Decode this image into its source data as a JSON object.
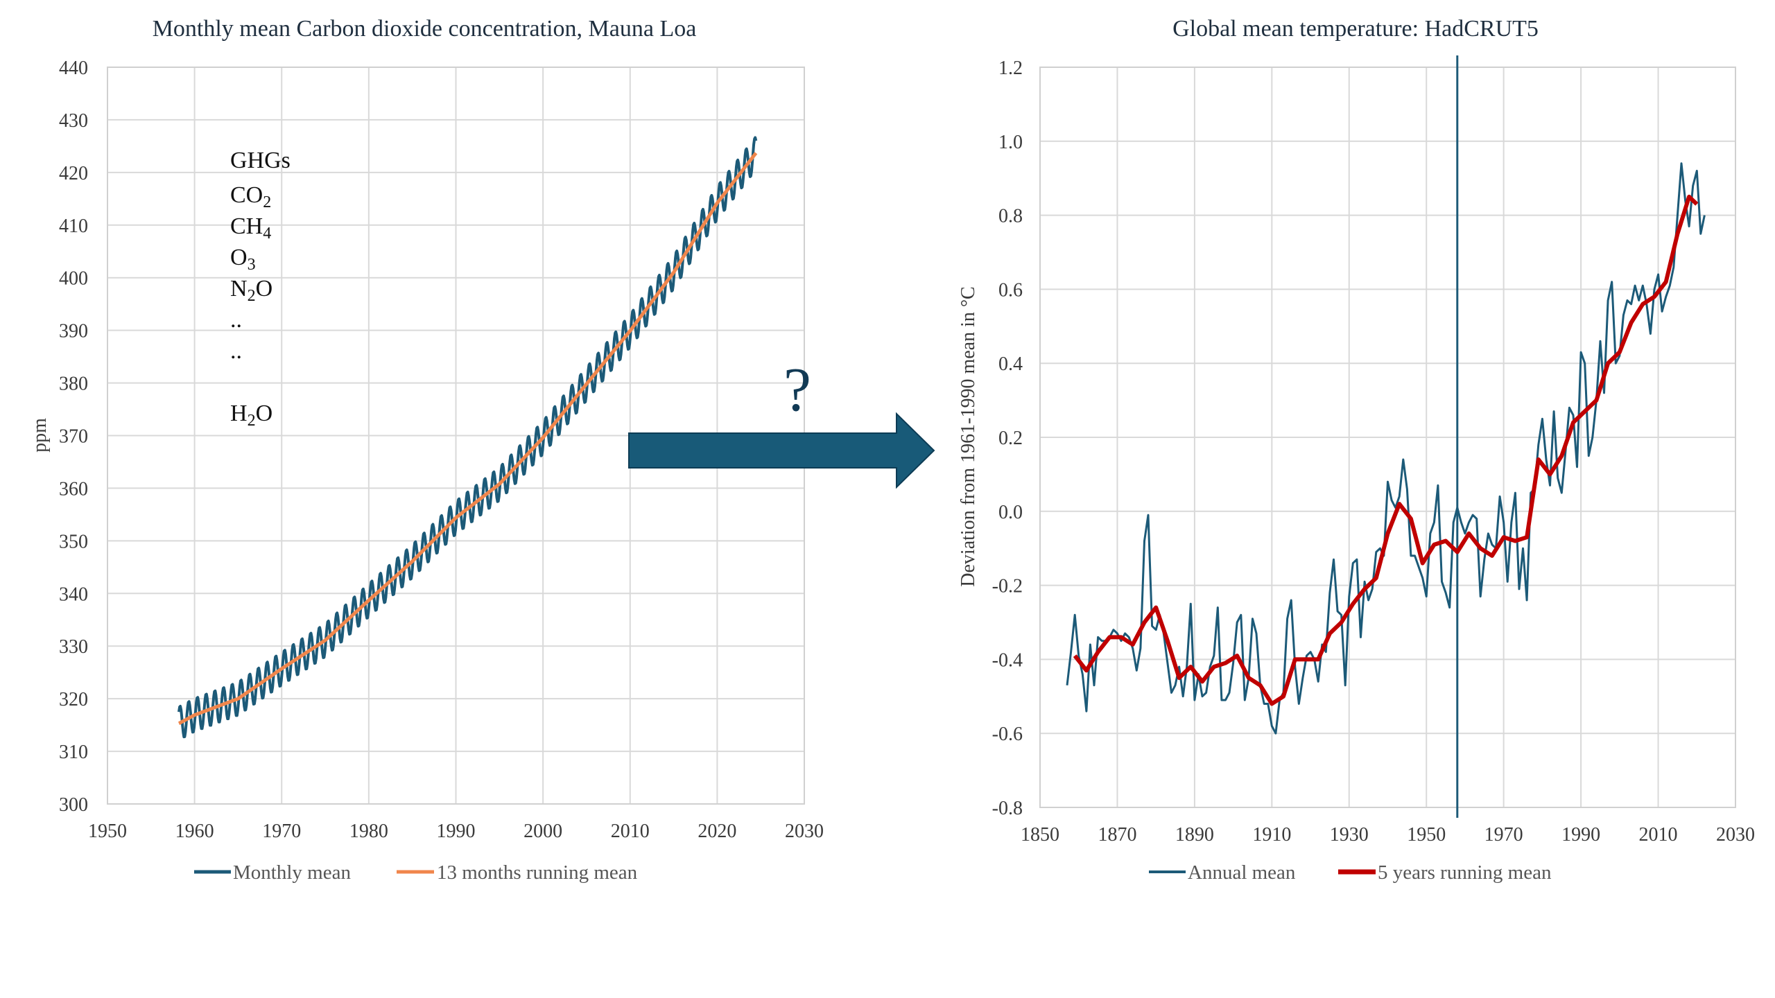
{
  "chart_data": [
    {
      "type": "line",
      "title": "Monthly mean Carbon dioxide concentration, Mauna Loa",
      "ylabel": "ppm",
      "xlim": [
        1950,
        2030
      ],
      "ylim": [
        300,
        440
      ],
      "xticks": [
        1950,
        1960,
        1970,
        1980,
        1990,
        2000,
        2010,
        2020,
        2030
      ],
      "yticks": [
        300,
        310,
        320,
        330,
        340,
        350,
        360,
        370,
        380,
        390,
        400,
        410,
        420,
        430,
        440
      ],
      "grid": true,
      "legend_position": "bottom",
      "colors": {
        "monthly": "#1c5a78",
        "running": "#f0864c"
      },
      "annotation": {
        "heading": "GHGs",
        "items": [
          {
            "base": "CO",
            "sub": "2",
            "tail": ""
          },
          {
            "base": "CH",
            "sub": "4",
            "tail": ""
          },
          {
            "base": "O",
            "sub": "3",
            "tail": ""
          },
          {
            "base": "N",
            "sub": "2",
            "tail": "O"
          },
          {
            "base": "..",
            "sub": "",
            "tail": ""
          },
          {
            "base": "..",
            "sub": "",
            "tail": ""
          },
          {
            "base": "",
            "sub": "",
            "tail": ""
          },
          {
            "base": "H",
            "sub": "2",
            "tail": "O"
          }
        ]
      },
      "running_mean_anchors": {
        "x": [
          1958.2,
          1960,
          1965,
          1970,
          1975,
          1980,
          1985,
          1990,
          1995,
          2000,
          2005,
          2010,
          2015,
          2020,
          2024.5
        ],
        "y": [
          315.3,
          316.9,
          320.0,
          325.7,
          331.1,
          338.7,
          346.1,
          354.4,
          360.8,
          369.6,
          379.8,
          389.9,
          401.0,
          414.2,
          423.8
        ]
      },
      "seasonal_amplitude_ppm": 3.2,
      "series": [
        {
          "name": "Monthly mean"
        },
        {
          "name": "13 months running mean"
        }
      ]
    },
    {
      "type": "line",
      "title": "Global mean temperature: HadCRUT5",
      "ylabel": "Deviation from 1961-1990 mean in °C",
      "xlim": [
        1850,
        2030
      ],
      "ylim": [
        -0.8,
        1.2
      ],
      "xticks": [
        1850,
        1870,
        1890,
        1910,
        1930,
        1950,
        1970,
        1990,
        2010,
        2030
      ],
      "yticks": [
        "-0.8",
        "-0.6",
        "-0.4",
        "-0.2",
        "0.0",
        "0.2",
        "0.4",
        "0.6",
        "0.8",
        "1.0",
        "1.2"
      ],
      "grid": true,
      "legend_position": "bottom",
      "vertical_marker_year": 1958,
      "colors": {
        "annual": "#1c5a78",
        "running": "#c00000",
        "marker": "#1c5a78"
      },
      "series": [
        {
          "name": "Annual mean",
          "x": [
            1857,
            1858,
            1859,
            1860,
            1861,
            1862,
            1863,
            1864,
            1865,
            1866,
            1867,
            1868,
            1869,
            1870,
            1871,
            1872,
            1873,
            1874,
            1875,
            1876,
            1877,
            1878,
            1879,
            1880,
            1881,
            1882,
            1883,
            1884,
            1885,
            1886,
            1887,
            1888,
            1889,
            1890,
            1891,
            1892,
            1893,
            1894,
            1895,
            1896,
            1897,
            1898,
            1899,
            1900,
            1901,
            1902,
            1903,
            1904,
            1905,
            1906,
            1907,
            1908,
            1909,
            1910,
            1911,
            1912,
            1913,
            1914,
            1915,
            1916,
            1917,
            1918,
            1919,
            1920,
            1921,
            1922,
            1923,
            1924,
            1925,
            1926,
            1927,
            1928,
            1929,
            1930,
            1931,
            1932,
            1933,
            1934,
            1935,
            1936,
            1937,
            1938,
            1939,
            1940,
            1941,
            1942,
            1943,
            1944,
            1945,
            1946,
            1947,
            1948,
            1949,
            1950,
            1951,
            1952,
            1953,
            1954,
            1955,
            1956,
            1957,
            1958,
            1959,
            1960,
            1961,
            1962,
            1963,
            1964,
            1965,
            1966,
            1967,
            1968,
            1969,
            1970,
            1971,
            1972,
            1973,
            1974,
            1975,
            1976,
            1977,
            1978,
            1979,
            1980,
            1981,
            1982,
            1983,
            1984,
            1985,
            1986,
            1987,
            1988,
            1989,
            1990,
            1991,
            1992,
            1993,
            1994,
            1995,
            1996,
            1997,
            1998,
            1999,
            2000,
            2001,
            2002,
            2003,
            2004,
            2005,
            2006,
            2007,
            2008,
            2009,
            2010,
            2011,
            2012,
            2013,
            2014,
            2015,
            2016,
            2017,
            2018,
            2019,
            2020,
            2021,
            2022
          ],
          "y": [
            -0.47,
            -0.38,
            -0.28,
            -0.39,
            -0.44,
            -0.54,
            -0.36,
            -0.47,
            -0.34,
            -0.35,
            -0.35,
            -0.34,
            -0.32,
            -0.33,
            -0.35,
            -0.33,
            -0.34,
            -0.37,
            -0.43,
            -0.37,
            -0.08,
            -0.01,
            -0.31,
            -0.32,
            -0.28,
            -0.33,
            -0.41,
            -0.49,
            -0.47,
            -0.42,
            -0.5,
            -0.42,
            -0.25,
            -0.51,
            -0.44,
            -0.5,
            -0.49,
            -0.42,
            -0.39,
            -0.26,
            -0.51,
            -0.51,
            -0.49,
            -0.41,
            -0.3,
            -0.28,
            -0.51,
            -0.45,
            -0.29,
            -0.33,
            -0.47,
            -0.52,
            -0.52,
            -0.58,
            -0.6,
            -0.51,
            -0.49,
            -0.29,
            -0.24,
            -0.42,
            -0.52,
            -0.45,
            -0.39,
            -0.38,
            -0.4,
            -0.46,
            -0.36,
            -0.38,
            -0.22,
            -0.13,
            -0.27,
            -0.28,
            -0.47,
            -0.23,
            -0.14,
            -0.13,
            -0.34,
            -0.19,
            -0.24,
            -0.21,
            -0.11,
            -0.1,
            -0.12,
            0.08,
            0.03,
            0.01,
            0.04,
            0.14,
            0.06,
            -0.12,
            -0.12,
            -0.15,
            -0.18,
            -0.23,
            -0.06,
            -0.03,
            0.07,
            -0.19,
            -0.22,
            -0.26,
            -0.03,
            0.01,
            -0.03,
            -0.06,
            -0.03,
            -0.01,
            -0.02,
            -0.23,
            -0.13,
            -0.06,
            -0.09,
            -0.1,
            0.04,
            -0.03,
            -0.19,
            -0.03,
            0.05,
            -0.21,
            -0.1,
            -0.24,
            0.05,
            0.06,
            0.18,
            0.25,
            0.14,
            0.07,
            0.27,
            0.09,
            0.05,
            0.16,
            0.28,
            0.26,
            0.12,
            0.43,
            0.4,
            0.15,
            0.2,
            0.3,
            0.46,
            0.32,
            0.57,
            0.62,
            0.4,
            0.42,
            0.53,
            0.57,
            0.56,
            0.61,
            0.57,
            0.61,
            0.56,
            0.48,
            0.6,
            0.64,
            0.54,
            0.58,
            0.61,
            0.66,
            0.8,
            0.94,
            0.84,
            0.77,
            0.88,
            0.92,
            0.75,
            0.8
          ]
        },
        {
          "name": "5 years running mean",
          "x": [
            1859,
            1862,
            1865,
            1868,
            1871,
            1874,
            1877,
            1880,
            1883,
            1886,
            1889,
            1892,
            1895,
            1898,
            1901,
            1904,
            1907,
            1910,
            1913,
            1916,
            1919,
            1922,
            1925,
            1928,
            1931,
            1934,
            1937,
            1940,
            1943,
            1946,
            1949,
            1952,
            1955,
            1958,
            1961,
            1964,
            1967,
            1970,
            1973,
            1976,
            1979,
            1982,
            1985,
            1988,
            1991,
            1994,
            1997,
            2000,
            2003,
            2006,
            2009,
            2012,
            2015,
            2018,
            2020
          ],
          "y": [
            -0.39,
            -0.43,
            -0.38,
            -0.34,
            -0.34,
            -0.36,
            -0.3,
            -0.26,
            -0.35,
            -0.45,
            -0.42,
            -0.46,
            -0.42,
            -0.41,
            -0.39,
            -0.45,
            -0.47,
            -0.52,
            -0.5,
            -0.4,
            -0.4,
            -0.4,
            -0.33,
            -0.3,
            -0.25,
            -0.21,
            -0.18,
            -0.06,
            0.02,
            -0.02,
            -0.14,
            -0.09,
            -0.08,
            -0.11,
            -0.06,
            -0.1,
            -0.12,
            -0.07,
            -0.08,
            -0.07,
            0.14,
            0.1,
            0.15,
            0.24,
            0.27,
            0.3,
            0.4,
            0.43,
            0.51,
            0.56,
            0.58,
            0.62,
            0.75,
            0.85,
            0.83
          ]
        }
      ]
    }
  ],
  "question_mark": "?",
  "colors": {
    "arrow_fill": "#185a78",
    "arrow_stroke": "#0d3c55"
  }
}
